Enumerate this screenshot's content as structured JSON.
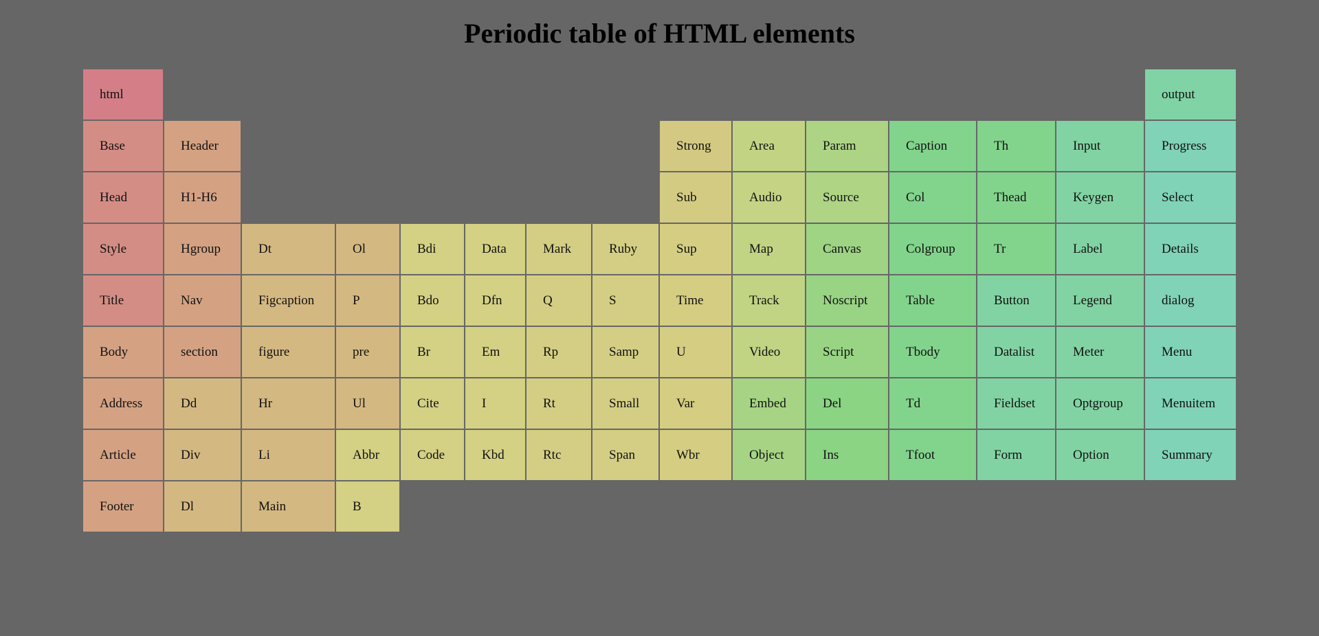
{
  "title": "Periodic table of HTML elements",
  "rows": [
    [
      "html",
      null,
      null,
      null,
      null,
      null,
      null,
      null,
      null,
      null,
      null,
      null,
      null,
      null,
      "output"
    ],
    [
      "Base",
      "Header",
      null,
      null,
      null,
      null,
      null,
      null,
      "Strong",
      "Area",
      "Param",
      "Caption",
      "Th",
      "Input",
      "Progress"
    ],
    [
      "Head",
      "H1-H6",
      null,
      null,
      null,
      null,
      null,
      null,
      "Sub",
      "Audio",
      "Source",
      "Col",
      "Thead",
      "Keygen",
      "Select"
    ],
    [
      "Style",
      "Hgroup",
      "Dt",
      "Ol",
      "Bdi",
      "Data",
      "Mark",
      "Ruby",
      "Sup",
      "Map",
      "Canvas",
      "Colgroup",
      "Tr",
      "Label",
      "Details"
    ],
    [
      "Title",
      "Nav",
      "Figcaption",
      "P",
      "Bdo",
      "Dfn",
      "Q",
      "S",
      "Time",
      "Track",
      "Noscript",
      "Table",
      "Button",
      "Legend",
      "dialog"
    ],
    [
      "Body",
      "section",
      "figure",
      "pre",
      "Br",
      "Em",
      "Rp",
      "Samp",
      "U",
      "Video",
      "Script",
      "Tbody",
      "Datalist",
      "Meter",
      "Menu"
    ],
    [
      "Address",
      "Dd",
      "Hr",
      "Ul",
      "Cite",
      "I",
      "Rt",
      "Small",
      "Var",
      "Embed",
      "Del",
      "Td",
      "Fieldset",
      "Optgroup",
      "Menuitem"
    ],
    [
      "Article",
      "Div",
      "Li",
      "Abbr",
      "Code",
      "Kbd",
      "Rtc",
      "Span",
      "Wbr",
      "Object",
      "Ins",
      "Tfoot",
      "Form",
      "Option",
      "Summary"
    ],
    [
      "Footer",
      "Dl",
      "Main",
      "B",
      null,
      null,
      null,
      null,
      null,
      null,
      null,
      null,
      null,
      null,
      null
    ]
  ],
  "colors": [
    [
      "#d47f87",
      null,
      null,
      null,
      null,
      null,
      null,
      null,
      null,
      null,
      null,
      null,
      null,
      null,
      "#80d3a5"
    ],
    [
      "#d48d85",
      "#d4a283",
      null,
      null,
      null,
      null,
      null,
      null,
      "#d4c982",
      "#c2d484",
      "#acd484",
      "#82d48c",
      "#82d48c",
      "#82d3a3",
      "#80d3b6"
    ],
    [
      "#d48d85",
      "#d4a283",
      null,
      null,
      null,
      null,
      null,
      null,
      "#d4cb82",
      "#c4d484",
      "#aed484",
      "#82d48c",
      "#82d48c",
      "#82d3a3",
      "#80d3b6"
    ],
    [
      "#d48d85",
      "#d4a283",
      "#d4b882",
      "#d4b882",
      "#d4d084",
      "#d4d084",
      "#d4ce84",
      "#d4ce84",
      "#d4cd82",
      "#c0d484",
      "#9ed484",
      "#82d48c",
      "#82d48c",
      "#82d3a3",
      "#80d3b6"
    ],
    [
      "#d48d85",
      "#d4a283",
      "#d4b882",
      "#d4b882",
      "#d4d084",
      "#d4d084",
      "#d4ce84",
      "#d4ce84",
      "#d4cd82",
      "#c0d484",
      "#98d484",
      "#82d48c",
      "#82d3a3",
      "#82d3a3",
      "#80d3b6"
    ],
    [
      "#d4a283",
      "#d4a283",
      "#d4b882",
      "#d4b882",
      "#d4d084",
      "#d4d084",
      "#d4ce84",
      "#d4ce84",
      "#d4cd82",
      "#c0d484",
      "#98d484",
      "#82d48c",
      "#82d3a3",
      "#82d3a3",
      "#80d3b6"
    ],
    [
      "#d4a283",
      "#d4b882",
      "#d4b882",
      "#d4b882",
      "#d4d084",
      "#d4d084",
      "#d4ce84",
      "#d4ce84",
      "#d4cd82",
      "#a6d484",
      "#8ad484",
      "#82d48c",
      "#82d3a3",
      "#82d3a3",
      "#80d3b6"
    ],
    [
      "#d4a283",
      "#d4b882",
      "#d4b882",
      "#d4d084",
      "#d4d084",
      "#d4d084",
      "#d4ce84",
      "#d4ce84",
      "#d4cd82",
      "#a6d484",
      "#8ad484",
      "#82d48c",
      "#82d3a3",
      "#82d3a3",
      "#80d3b6"
    ],
    [
      "#d4a283",
      "#d4b882",
      "#d4b882",
      "#d4d084",
      null,
      null,
      null,
      null,
      null,
      null,
      null,
      null,
      null,
      null,
      null
    ]
  ]
}
